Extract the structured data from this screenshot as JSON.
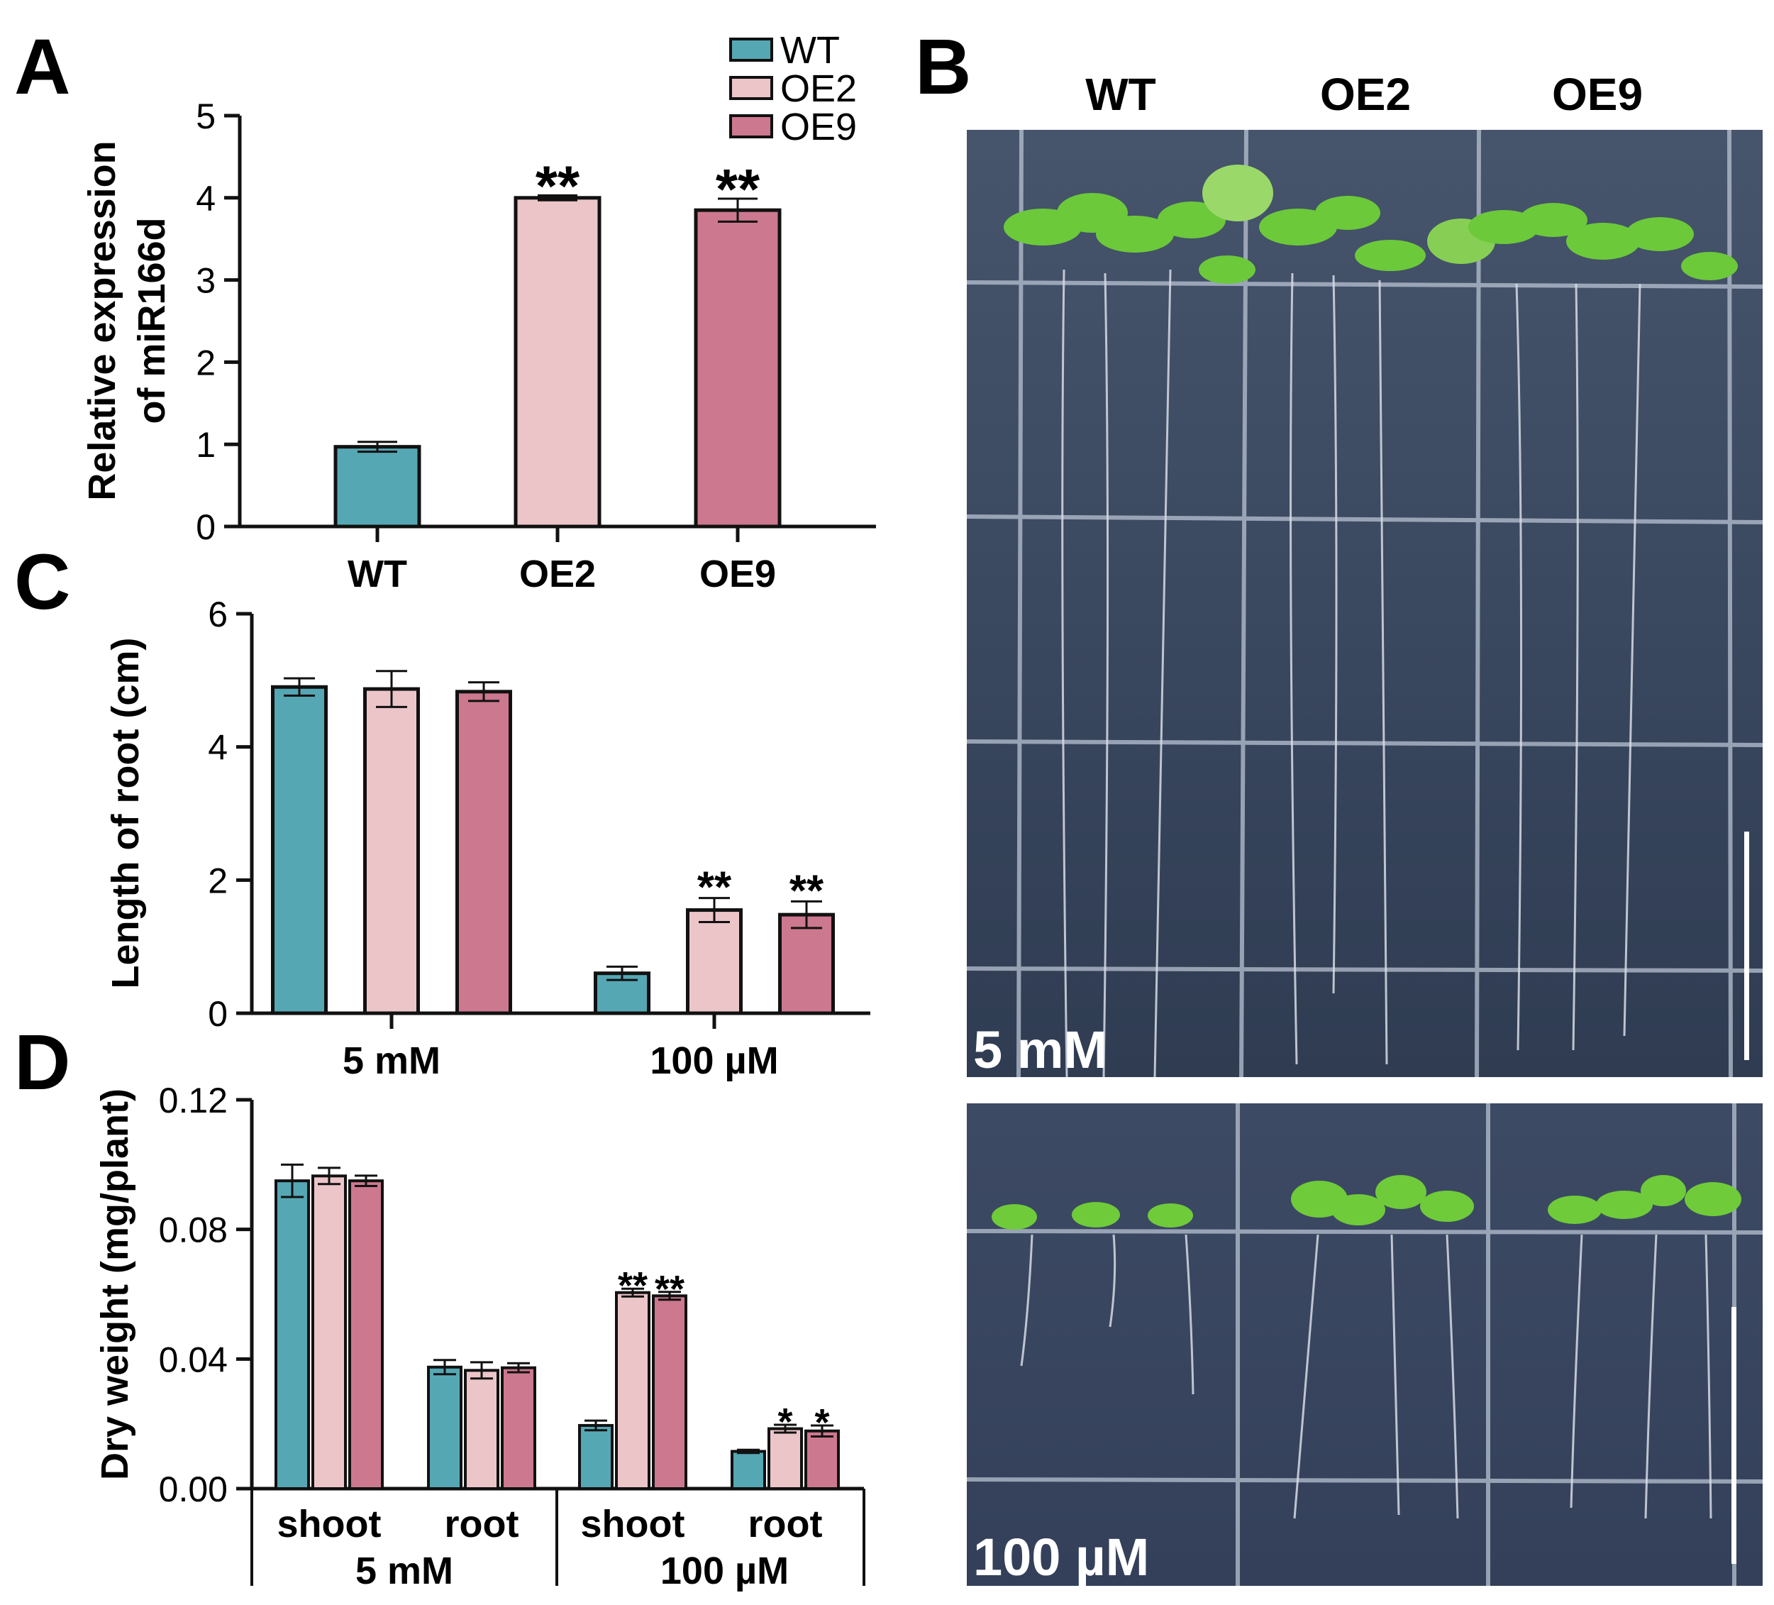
{
  "colors": {
    "WT": "#56a7b4",
    "OE2": "#ecc5c9",
    "OE9": "#cc788e"
  },
  "chart_data": [
    {
      "type": "bar",
      "panel": "A",
      "title": "",
      "xlabel": "",
      "ylabel_lines": [
        "Relative expression",
        "of miR166d"
      ],
      "ylim": [
        0,
        5
      ],
      "yticks": [
        0,
        1,
        2,
        3,
        4,
        5
      ],
      "categories": [
        "WT",
        "OE2",
        "OE9"
      ],
      "values": [
        0.97,
        4.0,
        3.85
      ],
      "errors": [
        0.06,
        0.03,
        0.14
      ],
      "significance": [
        "",
        "**",
        "**"
      ],
      "legend": {
        "placement": "top-right",
        "entries": [
          "WT",
          "OE2",
          "OE9"
        ]
      }
    },
    {
      "type": "bar",
      "panel": "C",
      "ylabel": "Length of root (cm)",
      "ylim": [
        0,
        6
      ],
      "yticks": [
        0,
        2,
        4,
        6
      ],
      "groups": [
        "5 mM",
        "100 µM"
      ],
      "series": [
        {
          "name": "WT",
          "values": [
            4.9,
            0.6
          ],
          "errors": [
            0.13,
            0.1
          ],
          "significance": [
            "",
            ""
          ]
        },
        {
          "name": "OE2",
          "values": [
            4.87,
            1.55
          ],
          "errors": [
            0.27,
            0.18
          ],
          "significance": [
            "",
            "**"
          ]
        },
        {
          "name": "OE9",
          "values": [
            4.83,
            1.48
          ],
          "errors": [
            0.14,
            0.2
          ],
          "significance": [
            "",
            "**"
          ]
        }
      ]
    },
    {
      "type": "bar",
      "panel": "D",
      "ylabel": "Dry weight (mg/plant)",
      "ylim": [
        0,
        0.12
      ],
      "yticks": [
        "0.00",
        "0.04",
        "0.08",
        "0.12"
      ],
      "categories": [
        "shoot",
        "root",
        "shoot",
        "root"
      ],
      "groups": [
        "5 mM",
        "100 µM"
      ],
      "series": [
        {
          "name": "WT",
          "values": [
            0.095,
            0.0375,
            0.0195,
            0.0115
          ],
          "errors": [
            0.005,
            0.0022,
            0.0015,
            0.0005
          ],
          "significance": [
            "",
            "",
            "",
            ""
          ]
        },
        {
          "name": "OE2",
          "values": [
            0.0965,
            0.0365,
            0.0605,
            0.0185
          ],
          "errors": [
            0.0025,
            0.0025,
            0.0012,
            0.0012
          ],
          "significance": [
            "",
            "",
            "**",
            "*"
          ]
        },
        {
          "name": "OE9",
          "values": [
            0.095,
            0.0373,
            0.0595,
            0.0178
          ],
          "errors": [
            0.0016,
            0.0014,
            0.0012,
            0.0017
          ],
          "significance": [
            "",
            "",
            "**",
            "*"
          ]
        }
      ]
    }
  ],
  "panels": {
    "A": "A",
    "B": "B",
    "C": "C",
    "D": "D"
  },
  "photo": {
    "columns": [
      "WT",
      "OE2",
      "OE9"
    ],
    "top_label": "5 mM",
    "bottom_label": "100 µM"
  }
}
